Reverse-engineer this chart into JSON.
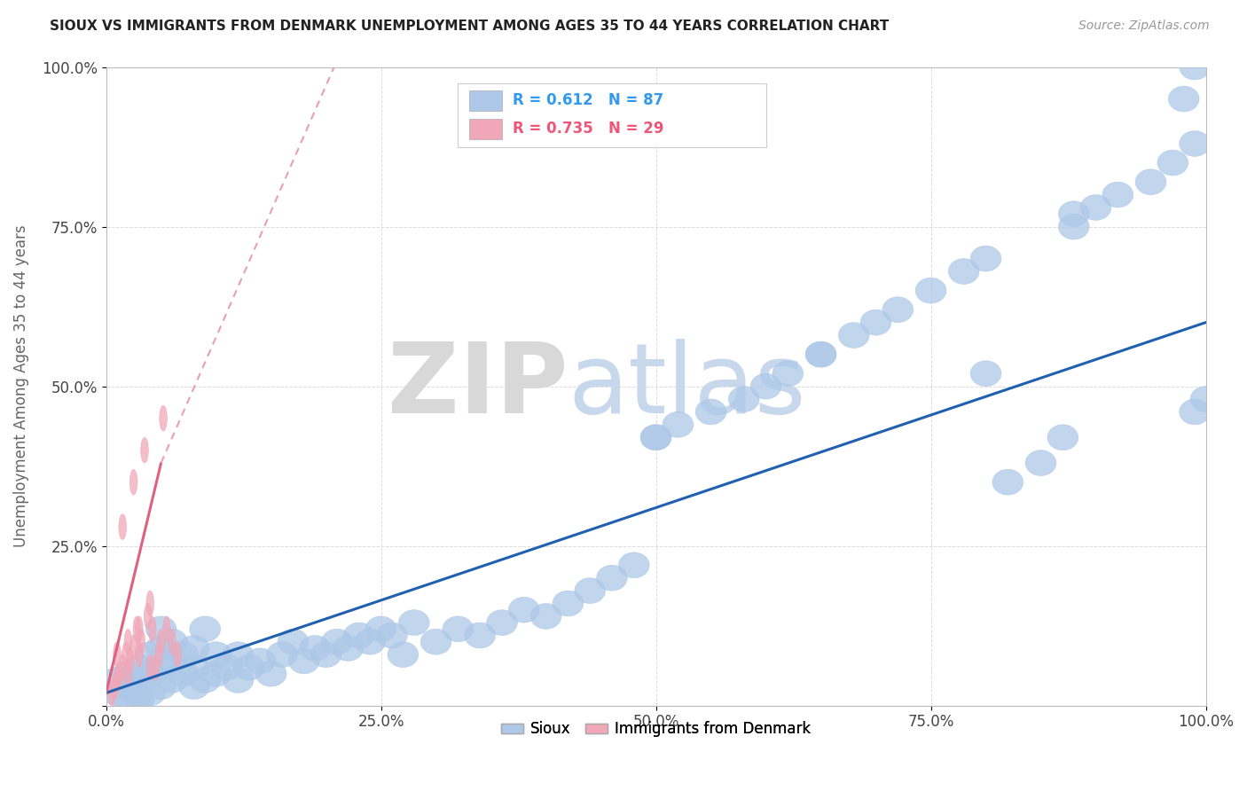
{
  "title": "SIOUX VS IMMIGRANTS FROM DENMARK UNEMPLOYMENT AMONG AGES 35 TO 44 YEARS CORRELATION CHART",
  "source": "Source: ZipAtlas.com",
  "ylabel": "Unemployment Among Ages 35 to 44 years",
  "xlim": [
    0,
    1
  ],
  "ylim": [
    0,
    1
  ],
  "xticks": [
    0.0,
    0.25,
    0.5,
    0.75,
    1.0
  ],
  "yticks": [
    0.0,
    0.25,
    0.5,
    0.75,
    1.0
  ],
  "xticklabels": [
    "0.0%",
    "25.0%",
    "50.0%",
    "75.0%",
    "100.0%"
  ],
  "yticklabels": [
    "",
    "25.0%",
    "50.0%",
    "75.0%",
    "100.0%"
  ],
  "sioux_color": "#adc8e8",
  "denmark_color": "#f0a8b8",
  "sioux_line_color": "#2060b0",
  "denmark_line_color": "#e06080",
  "denmark_dash_color": "#e8a0b0",
  "sioux_R": 0.612,
  "sioux_N": 87,
  "denmark_R": 0.735,
  "denmark_N": 29,
  "background_color": "#ffffff",
  "sioux_x": [
    0.01,
    0.01,
    0.02,
    0.02,
    0.02,
    0.03,
    0.03,
    0.03,
    0.03,
    0.04,
    0.04,
    0.04,
    0.05,
    0.05,
    0.05,
    0.05,
    0.06,
    0.06,
    0.06,
    0.07,
    0.07,
    0.08,
    0.08,
    0.08,
    0.09,
    0.09,
    0.1,
    0.1,
    0.11,
    0.12,
    0.12,
    0.13,
    0.14,
    0.15,
    0.16,
    0.17,
    0.18,
    0.19,
    0.2,
    0.21,
    0.22,
    0.23,
    0.24,
    0.25,
    0.26,
    0.27,
    0.28,
    0.3,
    0.32,
    0.34,
    0.36,
    0.38,
    0.4,
    0.42,
    0.44,
    0.46,
    0.48,
    0.5,
    0.52,
    0.55,
    0.58,
    0.6,
    0.62,
    0.65,
    0.68,
    0.7,
    0.72,
    0.75,
    0.78,
    0.8,
    0.82,
    0.85,
    0.87,
    0.88,
    0.9,
    0.92,
    0.95,
    0.97,
    0.98,
    0.99,
    0.99,
    0.99,
    1.0,
    0.5,
    0.65,
    0.8,
    0.88
  ],
  "sioux_y": [
    0.02,
    0.04,
    0.01,
    0.03,
    0.05,
    0.01,
    0.02,
    0.04,
    0.06,
    0.02,
    0.05,
    0.08,
    0.03,
    0.06,
    0.09,
    0.12,
    0.04,
    0.07,
    0.1,
    0.05,
    0.08,
    0.03,
    0.06,
    0.09,
    0.04,
    0.12,
    0.05,
    0.08,
    0.06,
    0.04,
    0.08,
    0.06,
    0.07,
    0.05,
    0.08,
    0.1,
    0.07,
    0.09,
    0.08,
    0.1,
    0.09,
    0.11,
    0.1,
    0.12,
    0.11,
    0.08,
    0.13,
    0.1,
    0.12,
    0.11,
    0.13,
    0.15,
    0.14,
    0.16,
    0.18,
    0.2,
    0.22,
    0.42,
    0.44,
    0.46,
    0.48,
    0.5,
    0.52,
    0.55,
    0.58,
    0.6,
    0.62,
    0.65,
    0.68,
    0.7,
    0.35,
    0.38,
    0.42,
    0.75,
    0.78,
    0.8,
    0.82,
    0.85,
    0.95,
    0.88,
    1.0,
    0.46,
    0.48,
    0.42,
    0.55,
    0.52,
    0.77
  ],
  "denmark_x": [
    0.005,
    0.008,
    0.01,
    0.01,
    0.012,
    0.015,
    0.015,
    0.018,
    0.02,
    0.02,
    0.022,
    0.025,
    0.025,
    0.028,
    0.03,
    0.03,
    0.032,
    0.035,
    0.038,
    0.04,
    0.04,
    0.042,
    0.045,
    0.048,
    0.05,
    0.052,
    0.055,
    0.06,
    0.065
  ],
  "denmark_y": [
    0.02,
    0.03,
    0.04,
    0.08,
    0.05,
    0.06,
    0.28,
    0.08,
    0.05,
    0.1,
    0.07,
    0.09,
    0.35,
    0.12,
    0.08,
    0.12,
    0.1,
    0.4,
    0.14,
    0.06,
    0.16,
    0.12,
    0.06,
    0.08,
    0.1,
    0.45,
    0.12,
    0.1,
    0.08
  ]
}
